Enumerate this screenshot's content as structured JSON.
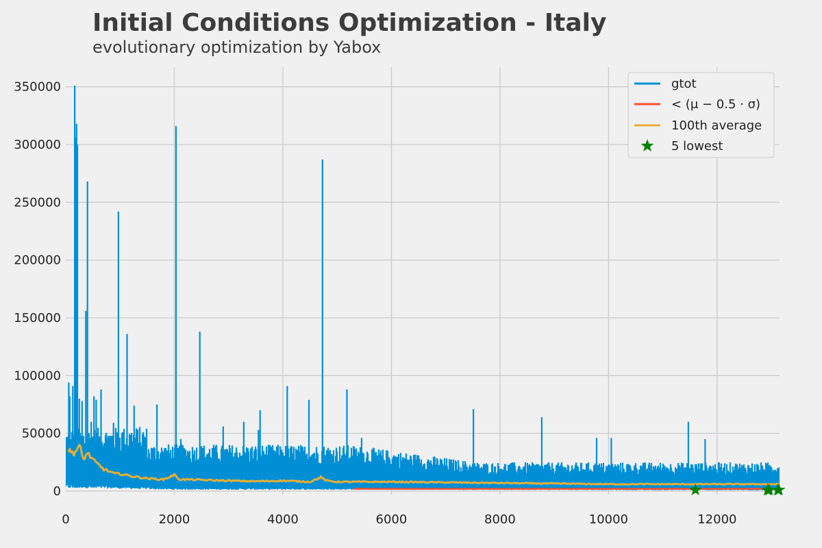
{
  "chart_data": {
    "type": "line",
    "title": "Initial Conditions Optimization - Italy",
    "subtitle": "evolutionary optimization by Yabox",
    "xlabel": "",
    "ylabel": "",
    "xlim": [
      0,
      13150
    ],
    "ylim": [
      -3000,
      367000
    ],
    "x_ticks": [
      0,
      2000,
      4000,
      6000,
      8000,
      10000,
      12000
    ],
    "x_tick_labels": [
      "0",
      "2000",
      "4000",
      "6000",
      "8000",
      "10000",
      "12000"
    ],
    "y_ticks": [
      0,
      50000,
      100000,
      150000,
      200000,
      250000,
      300000,
      350000
    ],
    "y_tick_labels": [
      "0",
      "50000",
      "100000",
      "150000",
      "200000",
      "250000",
      "300000",
      "350000"
    ],
    "grid": true,
    "legend_position": "top-right",
    "colors": {
      "gtot": "#008fd5",
      "threshold": "#fc4f30",
      "average": "#e5ae38",
      "lowest": "#008000",
      "background": "#f0f0f0",
      "grid": "#cbcbcb"
    },
    "legend": [
      {
        "label": "gtot",
        "marker": "line",
        "color": "#008fd5"
      },
      {
        "label": "< (μ − 0.5 · σ)",
        "marker": "line",
        "color": "#fc4f30"
      },
      {
        "label": "100th average",
        "marker": "line",
        "color": "#e5ae38"
      },
      {
        "label": "5 lowest",
        "marker": "star",
        "color": "#008000"
      }
    ],
    "series": [
      {
        "name": "gtot",
        "x_range": [
          0,
          13150
        ],
        "n_points": 13150,
        "peaks": [
          {
            "x": 55,
            "y": 94000
          },
          {
            "x": 75,
            "y": 82000
          },
          {
            "x": 130,
            "y": 91000
          },
          {
            "x": 165,
            "y": 351000
          },
          {
            "x": 180,
            "y": 306000
          },
          {
            "x": 200,
            "y": 318000
          },
          {
            "x": 215,
            "y": 300000
          },
          {
            "x": 250,
            "y": 80000
          },
          {
            "x": 300,
            "y": 78000
          },
          {
            "x": 370,
            "y": 156000
          },
          {
            "x": 400,
            "y": 268000
          },
          {
            "x": 470,
            "y": 60000
          },
          {
            "x": 520,
            "y": 82000
          },
          {
            "x": 560,
            "y": 79000
          },
          {
            "x": 650,
            "y": 88000
          },
          {
            "x": 780,
            "y": 48000
          },
          {
            "x": 880,
            "y": 59000
          },
          {
            "x": 970,
            "y": 242000
          },
          {
            "x": 1050,
            "y": 51000
          },
          {
            "x": 1130,
            "y": 136000
          },
          {
            "x": 1260,
            "y": 74000
          },
          {
            "x": 1430,
            "y": 44000
          },
          {
            "x": 1680,
            "y": 75000
          },
          {
            "x": 2030,
            "y": 316000
          },
          {
            "x": 2120,
            "y": 45000
          },
          {
            "x": 2470,
            "y": 138000
          },
          {
            "x": 2900,
            "y": 56000
          },
          {
            "x": 3280,
            "y": 60000
          },
          {
            "x": 3550,
            "y": 53000
          },
          {
            "x": 3580,
            "y": 70000
          },
          {
            "x": 4080,
            "y": 91000
          },
          {
            "x": 4480,
            "y": 79000
          },
          {
            "x": 4730,
            "y": 287000
          },
          {
            "x": 5180,
            "y": 88000
          },
          {
            "x": 5450,
            "y": 46000
          },
          {
            "x": 7510,
            "y": 71000
          },
          {
            "x": 8770,
            "y": 64000
          },
          {
            "x": 9780,
            "y": 46000
          },
          {
            "x": 10050,
            "y": 46000
          },
          {
            "x": 11470,
            "y": 60000
          },
          {
            "x": 11780,
            "y": 45000
          }
        ],
        "band_typical_y": [
          {
            "x": 0,
            "y": 40000
          },
          {
            "x": 1500,
            "y": 41000
          },
          {
            "x": 5300,
            "y": 40000
          },
          {
            "x": 7600,
            "y": 25000
          },
          {
            "x": 13150,
            "y": 25000
          }
        ],
        "band_floor_y": [
          {
            "x": 0,
            "y": 5000
          },
          {
            "x": 2000,
            "y": 2000
          },
          {
            "x": 5300,
            "y": 2000
          },
          {
            "x": 13150,
            "y": 1000
          }
        ]
      },
      {
        "name": "< (μ − 0.5 · σ)",
        "x_range": [
          5300,
          13150
        ],
        "y_constant": 2000
      },
      {
        "name": "100th average",
        "x": [
          50,
          150,
          260,
          320,
          400,
          520,
          700,
          900,
          1000,
          1200,
          1500,
          1800,
          2000,
          2100,
          2300,
          2600,
          3000,
          3500,
          4000,
          4500,
          4700,
          4800,
          5000,
          6000,
          7000,
          8000,
          9000,
          10000,
          11000,
          12000,
          13150
        ],
        "values": [
          35000,
          33000,
          39000,
          27000,
          33000,
          26000,
          19000,
          15000,
          15000,
          13000,
          11000,
          10000,
          14000,
          10000,
          10000,
          9500,
          9000,
          8500,
          9000,
          8000,
          12000,
          9000,
          8000,
          8000,
          7500,
          7000,
          6500,
          6000,
          6000,
          6000,
          6000
        ]
      },
      {
        "name": "5 lowest",
        "points": [
          {
            "x": 11600,
            "y": 1000
          },
          {
            "x": 12930,
            "y": 800
          },
          {
            "x": 12960,
            "y": 900
          },
          {
            "x": 13120,
            "y": 900
          },
          {
            "x": 13140,
            "y": 1000
          }
        ]
      }
    ]
  }
}
